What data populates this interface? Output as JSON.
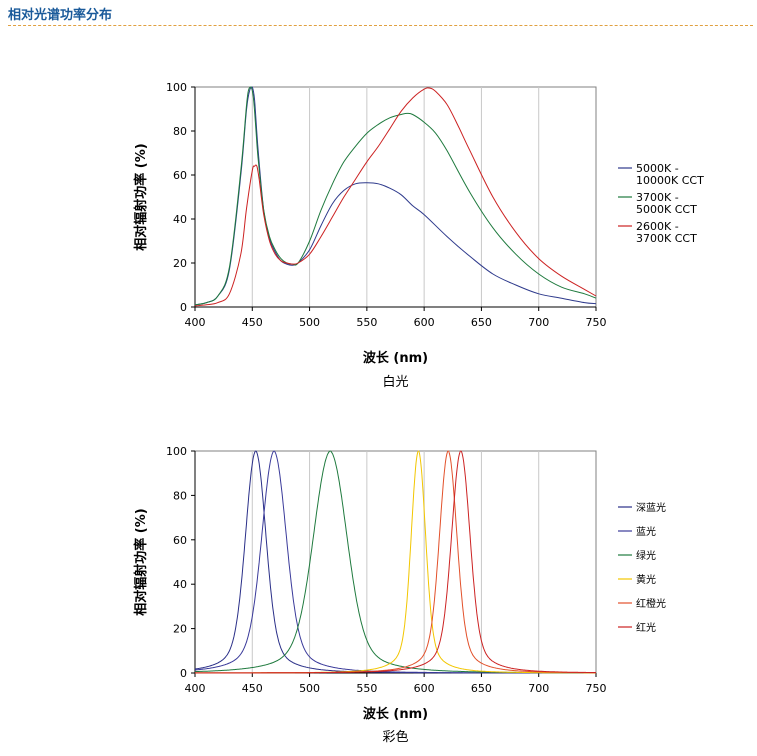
{
  "header": {
    "title": "相对光谱功率分布"
  },
  "chart_data": [
    {
      "type": "line",
      "caption": "白光",
      "xlabel": "波长 (nm)",
      "ylabel": "相对辐射功率 (%)",
      "xlim": [
        400,
        750
      ],
      "ylim": [
        0,
        100
      ],
      "xticks": [
        "400",
        "450",
        "500",
        "550",
        "600",
        "650",
        "700",
        "750"
      ],
      "yticks": [
        "0",
        "20",
        "40",
        "60",
        "80",
        "100"
      ],
      "grid": "vertical",
      "legend_position": "right",
      "series": [
        {
          "name": "5000K - 10000K CCT",
          "legend_lines": [
            "5000K -",
            "10000K CCT"
          ],
          "color": "#2e3a8c",
          "x": [
            400,
            410,
            420,
            430,
            440,
            445,
            448,
            450,
            452,
            455,
            460,
            465,
            470,
            475,
            480,
            485,
            490,
            500,
            510,
            520,
            530,
            540,
            550,
            560,
            570,
            580,
            590,
            600,
            620,
            640,
            660,
            680,
            700,
            720,
            740,
            750
          ],
          "y": [
            1,
            2,
            5,
            17,
            60,
            90,
            99,
            100,
            94,
            72,
            44,
            31,
            25,
            21,
            19.5,
            19,
            20,
            26,
            37,
            47,
            53,
            56,
            56.5,
            56,
            54,
            51,
            46,
            42,
            32,
            23,
            15,
            10,
            6,
            4,
            2,
            1.5
          ]
        },
        {
          "name": "3700K - 5000K CCT",
          "legend_lines": [
            "3700K -",
            "5000K CCT"
          ],
          "color": "#1f7a3e",
          "x": [
            400,
            410,
            420,
            430,
            440,
            445,
            447,
            449,
            451,
            453,
            455,
            460,
            465,
            470,
            475,
            480,
            485,
            490,
            500,
            510,
            520,
            530,
            540,
            550,
            560,
            570,
            580,
            585,
            590,
            600,
            610,
            620,
            640,
            660,
            680,
            700,
            720,
            740,
            750
          ],
          "y": [
            1,
            2,
            5,
            18,
            62,
            92,
            99,
            100,
            95,
            82,
            68,
            44,
            32,
            26,
            22,
            20,
            19.5,
            20,
            30,
            44,
            56,
            66,
            73,
            79,
            83,
            86,
            87.5,
            88,
            87.5,
            84,
            79,
            71,
            52,
            36,
            24,
            15,
            9,
            6,
            4
          ]
        },
        {
          "name": "2600K - 3700K CCT",
          "legend_lines": [
            "2600K -",
            "3700K CCT"
          ],
          "color": "#cc2222",
          "x": [
            400,
            410,
            420,
            430,
            440,
            445,
            450,
            452,
            454,
            456,
            460,
            465,
            470,
            475,
            480,
            485,
            490,
            500,
            510,
            520,
            530,
            540,
            550,
            560,
            570,
            580,
            590,
            600,
            605,
            610,
            620,
            630,
            640,
            660,
            680,
            700,
            720,
            740,
            750
          ],
          "y": [
            0.5,
            1,
            2,
            6,
            24,
            45,
            62,
            64,
            64,
            58,
            42,
            30,
            24,
            21,
            20,
            19.5,
            20,
            24,
            32,
            41,
            50,
            58,
            66,
            73,
            81,
            89,
            95,
            99,
            99.5,
            98,
            92,
            82,
            71,
            50,
            34,
            22,
            14,
            8,
            5
          ]
        }
      ]
    },
    {
      "type": "line",
      "caption": "彩色",
      "xlabel": "波长 (nm)",
      "ylabel": "相对辐射功率 (%)",
      "xlim": [
        400,
        750
      ],
      "ylim": [
        0,
        100
      ],
      "xticks": [
        "400",
        "450",
        "500",
        "550",
        "600",
        "650",
        "700",
        "750"
      ],
      "yticks": [
        "0",
        "20",
        "40",
        "60",
        "80",
        "100"
      ],
      "grid": "vertical",
      "legend_position": "right",
      "series": [
        {
          "name": "深蓝光",
          "legend_lines": [
            "深蓝光"
          ],
          "color": "#2a2f88",
          "peak": 453,
          "fwhm": 20
        },
        {
          "name": "蓝光",
          "legend_lines": [
            "蓝光"
          ],
          "color": "#3a3a9a",
          "peak": 469,
          "fwhm": 24
        },
        {
          "name": "绿光",
          "legend_lines": [
            "绿光"
          ],
          "color": "#1f7a3e",
          "peak": 518,
          "fwhm": 33
        },
        {
          "name": "黄光",
          "legend_lines": [
            "黄光"
          ],
          "color": "#f2c600",
          "peak": 595,
          "fwhm": 14
        },
        {
          "name": "红橙光",
          "legend_lines": [
            "红橙光"
          ],
          "color": "#e2502a",
          "peak": 621,
          "fwhm": 17
        },
        {
          "name": "红光",
          "legend_lines": [
            "红光"
          ],
          "color": "#cc2222",
          "peak": 632,
          "fwhm": 18
        }
      ]
    }
  ]
}
